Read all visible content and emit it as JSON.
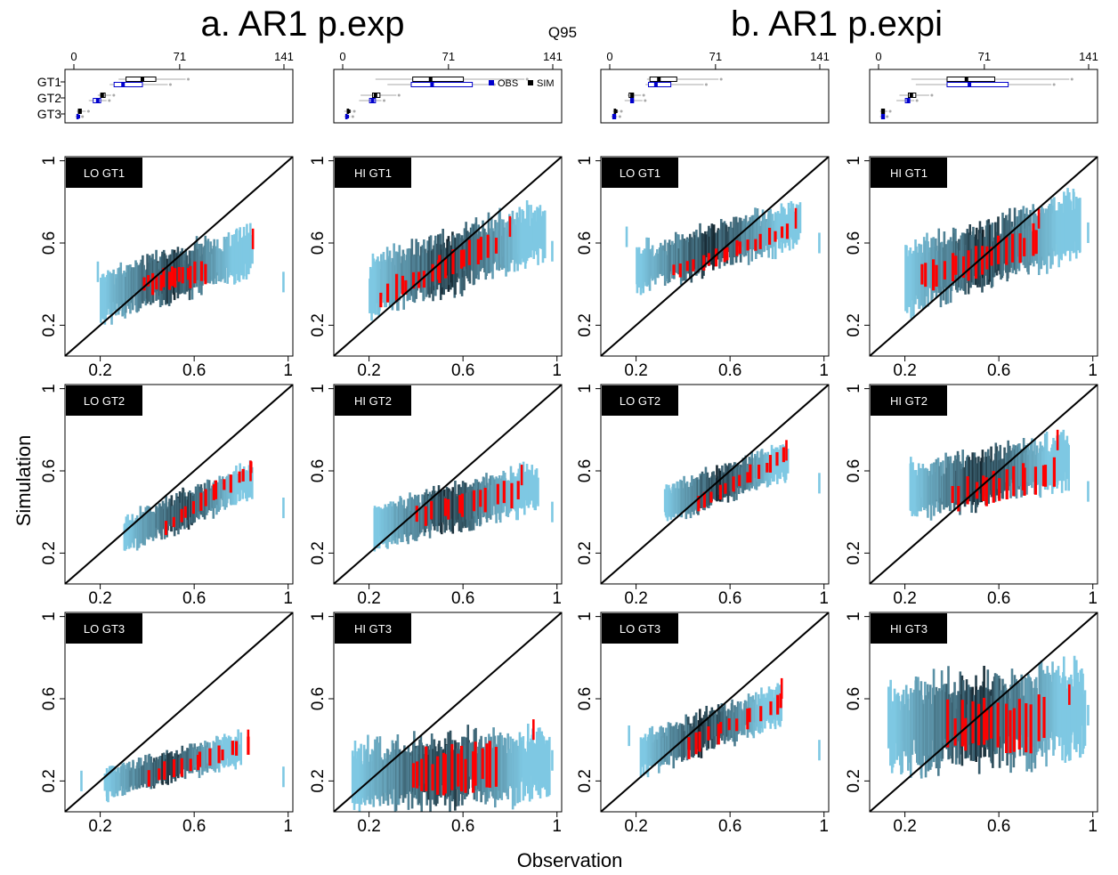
{
  "figure": {
    "group_titles": [
      "a. AR1 p.exp",
      "b. AR1 p.expi"
    ],
    "boxplot_title": "Q95",
    "xlabel": "Observation",
    "ylabel": "Simulation",
    "legend": {
      "obs": "OBS",
      "sim": "SIM"
    },
    "colors": {
      "obs_box": "#0000cc",
      "sim_box": "#000000",
      "whisker": "#aaaaaa",
      "density_low": "#7ec8e3",
      "density_high": "#0d1a22",
      "highlight": "#ff0000",
      "diagonal": "#000000",
      "label_bg": "#000000",
      "label_text": "#ffffff"
    }
  },
  "chart_data": [
    {
      "type": "boxplot",
      "panel": "a-LO",
      "title": "",
      "categories": [
        "GT1",
        "GT2",
        "GT3"
      ],
      "xlim": [
        0,
        141
      ],
      "xticks": [
        0,
        71,
        141
      ],
      "series": [
        {
          "name": "SIM",
          "stats": [
            [
              30,
              35,
              46,
              55,
              75
            ],
            [
              16,
              18,
              19,
              21,
              25
            ],
            [
              2,
              3,
              4,
              5,
              8
            ]
          ]
        },
        {
          "name": "OBS",
          "stats": [
            [
              24,
              27,
              33,
              46,
              63
            ],
            [
              10,
              13,
              16,
              18,
              22
            ],
            [
              1,
              2,
              3,
              3,
              4
            ]
          ]
        }
      ]
    },
    {
      "type": "boxplot",
      "panel": "a-HI",
      "title": "",
      "categories": [
        "GT1",
        "GT2",
        "GT3"
      ],
      "xlim": [
        0,
        141
      ],
      "xticks": [
        0,
        71,
        141
      ],
      "series": [
        {
          "name": "SIM",
          "stats": [
            [
              22,
              47,
              59,
              81,
              122
            ],
            [
              12,
              20,
              22,
              25,
              36
            ],
            [
              1,
              3,
              4,
              4,
              6
            ]
          ]
        },
        {
          "name": "OBS",
          "stats": [
            [
              30,
              46,
              60,
              87,
              100
            ],
            [
              11,
              18,
              20,
              22,
              26
            ],
            [
              1,
              2,
              3,
              3,
              5
            ]
          ]
        }
      ]
    },
    {
      "type": "boxplot",
      "panel": "b-LO",
      "title": "",
      "categories": [
        "GT1",
        "GT2",
        "GT3"
      ],
      "xlim": [
        0,
        141
      ],
      "xticks": [
        0,
        71,
        141
      ],
      "series": [
        {
          "name": "SIM",
          "stats": [
            [
              25,
              27,
              33,
              45,
              73
            ],
            [
              12,
              13,
              15,
              16,
              21
            ],
            [
              2,
              3,
              4,
              4,
              6
            ]
          ]
        },
        {
          "name": "OBS",
          "stats": [
            [
              24,
              26,
              31,
              41,
              63
            ],
            [
              10,
              14,
              15,
              16,
              22
            ],
            [
              1,
              2,
              3,
              4,
              5
            ]
          ]
        }
      ]
    },
    {
      "type": "boxplot",
      "panel": "b-HI",
      "title": "",
      "categories": [
        "GT1",
        "GT2",
        "GT3"
      ],
      "xlim": [
        0,
        141
      ],
      "xticks": [
        0,
        71,
        141
      ],
      "series": [
        {
          "name": "SIM",
          "stats": [
            [
              22,
              46,
              59,
              78,
              128
            ],
            [
              14,
              20,
              22,
              25,
              34
            ],
            [
              1,
              2,
              3,
              4,
              6
            ]
          ]
        },
        {
          "name": "OBS",
          "stats": [
            [
              25,
              46,
              61,
              87,
              116
            ],
            [
              12,
              18,
              20,
              21,
              24
            ],
            [
              1,
              2,
              3,
              4,
              4
            ]
          ]
        }
      ]
    },
    {
      "type": "scatter",
      "panel": "LO GT1",
      "label": "LO GT1",
      "xlim": [
        0.05,
        1.02
      ],
      "ylim": [
        0.05,
        1.02
      ],
      "xticks": [
        0.2,
        0.6,
        1.0
      ],
      "yticks": [
        0.2,
        0.6,
        1.0
      ],
      "cloud": {
        "x_range": [
          0.2,
          0.85
        ],
        "fit_at_x_min": 0.34,
        "fit_at_x_max": 0.56,
        "spread": 0.11,
        "n": 150
      },
      "highlight": {
        "x_range": [
          0.38,
          0.65
        ],
        "fit_at_x_min": 0.4,
        "fit_at_x_max": 0.46,
        "spread": 0.05,
        "n": 16
      },
      "extra": [
        {
          "x": 0.85,
          "y": 0.62,
          "color": "red"
        },
        {
          "x": 0.19,
          "y": 0.46,
          "color": "blue"
        },
        {
          "x": 0.98,
          "y": 0.41,
          "color": "blue"
        }
      ]
    },
    {
      "type": "scatter",
      "panel": "HI GT1",
      "label": "HI GT1",
      "xlim": [
        0.05,
        1.02
      ],
      "ylim": [
        0.05,
        1.02
      ],
      "xticks": [
        0.2,
        0.6,
        1.0
      ],
      "yticks": [
        0.2,
        0.6,
        1.0
      ],
      "cloud": {
        "x_range": [
          0.2,
          0.95
        ],
        "fit_at_x_min": 0.38,
        "fit_at_x_max": 0.66,
        "spread": 0.13,
        "n": 170
      },
      "highlight": {
        "x_range": [
          0.25,
          0.75
        ],
        "fit_at_x_min": 0.34,
        "fit_at_x_max": 0.6,
        "spread": 0.06,
        "n": 20
      },
      "extra": [
        {
          "x": 0.8,
          "y": 0.68,
          "color": "red"
        },
        {
          "x": 0.98,
          "y": 0.56,
          "color": "blue"
        }
      ]
    },
    {
      "type": "scatter",
      "panel": "LO GT1 b",
      "label": "LO GT1",
      "xlim": [
        0.05,
        1.02
      ],
      "ylim": [
        0.05,
        1.02
      ],
      "xticks": [
        0.2,
        0.6,
        1.0
      ],
      "yticks": [
        0.2,
        0.6,
        1.0
      ],
      "cloud": {
        "x_range": [
          0.2,
          0.9
        ],
        "fit_at_x_min": 0.47,
        "fit_at_x_max": 0.7,
        "spread": 0.1,
        "n": 150
      },
      "highlight": {
        "x_range": [
          0.35,
          0.87
        ],
        "fit_at_x_min": 0.46,
        "fit_at_x_max": 0.66,
        "spread": 0.04,
        "n": 18
      },
      "extra": [
        {
          "x": 0.88,
          "y": 0.72,
          "color": "red"
        },
        {
          "x": 0.16,
          "y": 0.63,
          "color": "blue"
        },
        {
          "x": 0.98,
          "y": 0.6,
          "color": "blue"
        }
      ]
    },
    {
      "type": "scatter",
      "panel": "HI GT1 b",
      "label": "HI GT1",
      "xlim": [
        0.05,
        1.02
      ],
      "ylim": [
        0.05,
        1.02
      ],
      "xticks": [
        0.2,
        0.6,
        1.0
      ],
      "yticks": [
        0.2,
        0.6,
        1.0
      ],
      "cloud": {
        "x_range": [
          0.2,
          0.95
        ],
        "fit_at_x_min": 0.42,
        "fit_at_x_max": 0.7,
        "spread": 0.14,
        "n": 170
      },
      "highlight": {
        "x_range": [
          0.25,
          0.78
        ],
        "fit_at_x_min": 0.42,
        "fit_at_x_max": 0.62,
        "spread": 0.07,
        "n": 20
      },
      "extra": [
        {
          "x": 0.77,
          "y": 0.72,
          "color": "red"
        },
        {
          "x": 0.98,
          "y": 0.65,
          "color": "blue"
        }
      ]
    },
    {
      "type": "scatter",
      "panel": "LO GT2",
      "label": "LO GT2",
      "xlim": [
        0.05,
        1.02
      ],
      "ylim": [
        0.05,
        1.02
      ],
      "xticks": [
        0.2,
        0.6,
        1.0
      ],
      "yticks": [
        0.2,
        0.6,
        1.0
      ],
      "cloud": {
        "x_range": [
          0.3,
          0.85
        ],
        "fit_at_x_min": 0.28,
        "fit_at_x_max": 0.56,
        "spread": 0.08,
        "n": 130
      },
      "highlight": {
        "x_range": [
          0.48,
          0.85
        ],
        "fit_at_x_min": 0.33,
        "fit_at_x_max": 0.62,
        "spread": 0.04,
        "n": 14
      },
      "extra": [
        {
          "x": 0.84,
          "y": 0.6,
          "color": "red"
        },
        {
          "x": 0.98,
          "y": 0.42,
          "color": "blue"
        }
      ]
    },
    {
      "type": "scatter",
      "panel": "HI GT2",
      "label": "HI GT2",
      "xlim": [
        0.05,
        1.02
      ],
      "ylim": [
        0.05,
        1.02
      ],
      "xticks": [
        0.2,
        0.6,
        1.0
      ],
      "yticks": [
        0.2,
        0.6,
        1.0
      ],
      "cloud": {
        "x_range": [
          0.22,
          0.92
        ],
        "fit_at_x_min": 0.33,
        "fit_at_x_max": 0.52,
        "spread": 0.1,
        "n": 160
      },
      "highlight": {
        "x_range": [
          0.4,
          0.85
        ],
        "fit_at_x_min": 0.38,
        "fit_at_x_max": 0.5,
        "spread": 0.06,
        "n": 14
      },
      "extra": [
        {
          "x": 0.85,
          "y": 0.58,
          "color": "red"
        },
        {
          "x": 0.98,
          "y": 0.4,
          "color": "blue"
        }
      ]
    },
    {
      "type": "scatter",
      "panel": "LO GT2 b",
      "label": "LO GT2",
      "xlim": [
        0.05,
        1.02
      ],
      "ylim": [
        0.05,
        1.02
      ],
      "xticks": [
        0.2,
        0.6,
        1.0
      ],
      "yticks": [
        0.2,
        0.6,
        1.0
      ],
      "cloud": {
        "x_range": [
          0.32,
          0.85
        ],
        "fit_at_x_min": 0.43,
        "fit_at_x_max": 0.66,
        "spread": 0.08,
        "n": 130
      },
      "highlight": {
        "x_range": [
          0.45,
          0.85
        ],
        "fit_at_x_min": 0.44,
        "fit_at_x_max": 0.68,
        "spread": 0.04,
        "n": 14
      },
      "extra": [
        {
          "x": 0.84,
          "y": 0.7,
          "color": "red"
        },
        {
          "x": 0.98,
          "y": 0.54,
          "color": "blue"
        }
      ]
    },
    {
      "type": "scatter",
      "panel": "HI GT2 b",
      "label": "HI GT2",
      "xlim": [
        0.05,
        1.02
      ],
      "ylim": [
        0.05,
        1.02
      ],
      "xticks": [
        0.2,
        0.6,
        1.0
      ],
      "yticks": [
        0.2,
        0.6,
        1.0
      ],
      "cloud": {
        "x_range": [
          0.22,
          0.9
        ],
        "fit_at_x_min": 0.5,
        "fit_at_x_max": 0.65,
        "spread": 0.12,
        "n": 160
      },
      "highlight": {
        "x_range": [
          0.4,
          0.85
        ],
        "fit_at_x_min": 0.47,
        "fit_at_x_max": 0.6,
        "spread": 0.07,
        "n": 16
      },
      "extra": [
        {
          "x": 0.85,
          "y": 0.75,
          "color": "red"
        },
        {
          "x": 0.98,
          "y": 0.5,
          "color": "blue"
        }
      ]
    },
    {
      "type": "scatter",
      "panel": "LO GT3",
      "label": "LO GT3",
      "xlim": [
        0.05,
        1.02
      ],
      "ylim": [
        0.05,
        1.02
      ],
      "xticks": [
        0.2,
        0.6,
        1.0
      ],
      "yticks": [
        0.2,
        0.6,
        1.0
      ],
      "cloud": {
        "x_range": [
          0.22,
          0.8
        ],
        "fit_at_x_min": 0.19,
        "fit_at_x_max": 0.36,
        "spread": 0.07,
        "n": 130
      },
      "highlight": {
        "x_range": [
          0.4,
          0.84
        ],
        "fit_at_x_min": 0.22,
        "fit_at_x_max": 0.38,
        "spread": 0.04,
        "n": 14
      },
      "extra": [
        {
          "x": 0.83,
          "y": 0.4,
          "color": "red"
        },
        {
          "x": 0.98,
          "y": 0.22,
          "color": "blue"
        },
        {
          "x": 0.12,
          "y": 0.2,
          "color": "blue"
        }
      ]
    },
    {
      "type": "scatter",
      "panel": "HI GT3",
      "label": "HI GT3",
      "xlim": [
        0.05,
        1.02
      ],
      "ylim": [
        0.05,
        1.02
      ],
      "xticks": [
        0.2,
        0.6,
        1.0
      ],
      "yticks": [
        0.2,
        0.6,
        1.0
      ],
      "cloud": {
        "x_range": [
          0.13,
          0.97
        ],
        "fit_at_x_min": 0.23,
        "fit_at_x_max": 0.28,
        "spread": 0.15,
        "n": 180
      },
      "highlight": {
        "x_range": [
          0.38,
          0.75
        ],
        "fit_at_x_min": 0.24,
        "fit_at_x_max": 0.26,
        "spread": 0.1,
        "n": 18
      },
      "extra": [
        {
          "x": 0.9,
          "y": 0.45,
          "color": "red"
        },
        {
          "x": 0.98,
          "y": 0.3,
          "color": "blue"
        }
      ]
    },
    {
      "type": "scatter",
      "panel": "LO GT3 b",
      "label": "LO GT3",
      "xlim": [
        0.05,
        1.02
      ],
      "ylim": [
        0.05,
        1.02
      ],
      "xticks": [
        0.2,
        0.6,
        1.0
      ],
      "yticks": [
        0.2,
        0.6,
        1.0
      ],
      "cloud": {
        "x_range": [
          0.22,
          0.82
        ],
        "fit_at_x_min": 0.33,
        "fit_at_x_max": 0.57,
        "spread": 0.09,
        "n": 130
      },
      "highlight": {
        "x_range": [
          0.4,
          0.84
        ],
        "fit_at_x_min": 0.36,
        "fit_at_x_max": 0.6,
        "spread": 0.05,
        "n": 14
      },
      "extra": [
        {
          "x": 0.82,
          "y": 0.65,
          "color": "red"
        },
        {
          "x": 0.98,
          "y": 0.35,
          "color": "blue"
        },
        {
          "x": 0.17,
          "y": 0.42,
          "color": "blue"
        }
      ]
    },
    {
      "type": "scatter",
      "panel": "HI GT3 b",
      "label": "HI GT3",
      "xlim": [
        0.05,
        1.02
      ],
      "ylim": [
        0.05,
        1.02
      ],
      "xticks": [
        0.2,
        0.6,
        1.0
      ],
      "yticks": [
        0.2,
        0.6,
        1.0
      ],
      "cloud": {
        "x_range": [
          0.13,
          0.97
        ],
        "fit_at_x_min": 0.45,
        "fit_at_x_max": 0.55,
        "spread": 0.2,
        "n": 180
      },
      "highlight": {
        "x_range": [
          0.38,
          0.8
        ],
        "fit_at_x_min": 0.45,
        "fit_at_x_max": 0.48,
        "spread": 0.11,
        "n": 18
      },
      "extra": [
        {
          "x": 0.9,
          "y": 0.62,
          "color": "red"
        },
        {
          "x": 0.98,
          "y": 0.52,
          "color": "blue"
        }
      ]
    }
  ]
}
